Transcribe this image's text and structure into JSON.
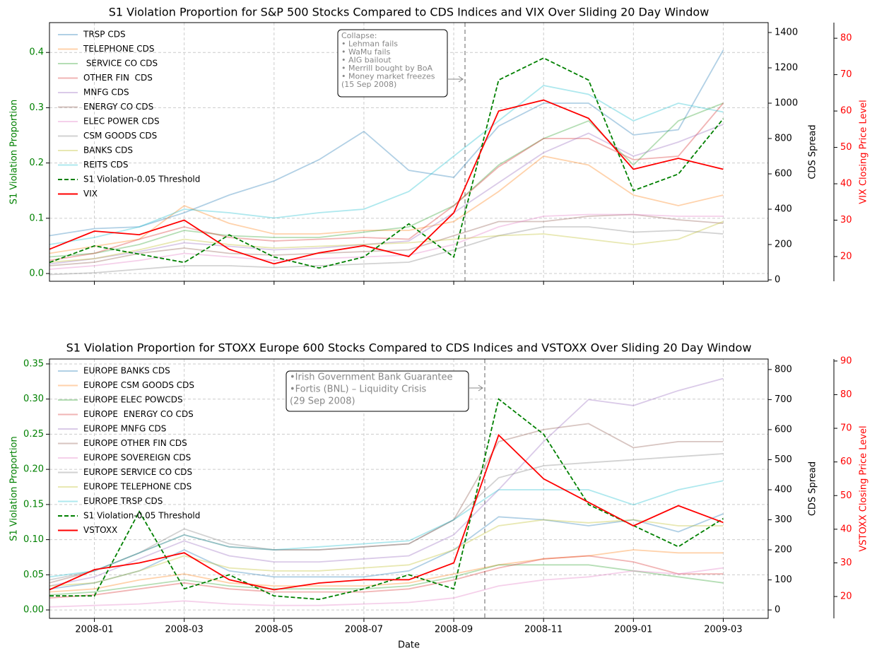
{
  "chart_data": [
    {
      "type": "line",
      "title": "S1 Violation Proportion for S&P 500 Stocks Compared to CDS Indices and VIX Over Sliding 20 Day Window",
      "ylabel": "S1 Violation Proportion",
      "y2label": "CDS Spread",
      "y3label": "VIX Closing Price Level",
      "legend": "upper left",
      "grid": true,
      "annotation": [
        "Collapse:",
        "• Lehman fails",
        "• WaMu fails",
        "• AIG bailout",
        "• Merrill bought by BoA",
        "• Money market freezes",
        "(15 Sep 2008)"
      ],
      "x": [
        "2007-12",
        "2008-01",
        "2008-02",
        "2008-03",
        "2008-04",
        "2008-05",
        "2008-06",
        "2008-07",
        "2008-08",
        "2008-09",
        "2008-10",
        "2008-11",
        "2008-12",
        "2009-01",
        "2009-02",
        "2009-03"
      ],
      "xlim": [
        "2007-12",
        "2009-04"
      ],
      "xticks": [
        "2008-01",
        "2008-03",
        "2008-05",
        "2008-07",
        "2008-09",
        "2008-11",
        "2009-01",
        "2009-03"
      ],
      "ylim": [
        -0.014,
        0.454
      ],
      "yticks": [
        {
          "value": 0,
          "label": "0.0"
        },
        0.1,
        0.2,
        0.3,
        0.4
      ],
      "y2lim": [
        -8,
        1456
      ],
      "y2ticks": [
        0,
        200,
        400,
        600,
        800,
        1000,
        1200,
        1400
      ],
      "y3lim": [
        13.2,
        84.3
      ],
      "y3ticks": [
        20,
        30,
        40,
        50,
        60,
        70,
        80
      ],
      "series": [
        {
          "name": "TRSP CDS",
          "color": "#1f77b4",
          "axis": "y2",
          "values": [
            250,
            290,
            300,
            380,
            480,
            560,
            680,
            840,
            620,
            580,
            870,
            1000,
            1000,
            820,
            850,
            1300
          ]
        },
        {
          "name": "TELEPHONE CDS",
          "color": "#ff7f0e",
          "axis": "y2",
          "values": [
            150,
            190,
            230,
            420,
            320,
            260,
            260,
            280,
            280,
            330,
            500,
            700,
            650,
            480,
            420,
            480
          ]
        },
        {
          "name": " SERVICE CO CDS",
          "color": "#2ca02c",
          "axis": "y2",
          "values": [
            130,
            150,
            200,
            280,
            250,
            240,
            240,
            270,
            300,
            420,
            650,
            800,
            900,
            650,
            900,
            1000
          ]
        },
        {
          "name": "OTHER FIN  CDS",
          "color": "#d62728",
          "axis": "y2",
          "values": [
            110,
            150,
            230,
            300,
            240,
            220,
            230,
            240,
            230,
            420,
            640,
            800,
            800,
            680,
            700,
            1000
          ]
        },
        {
          "name": "MNFG CDS",
          "color": "#9467bd",
          "axis": "y2",
          "values": [
            90,
            120,
            160,
            210,
            190,
            170,
            180,
            200,
            220,
            380,
            550,
            720,
            830,
            700,
            780,
            880
          ]
        },
        {
          "name": "ENERGY CO CDS",
          "color": "#8c564b",
          "axis": "y2",
          "values": [
            80,
            100,
            150,
            180,
            150,
            140,
            150,
            160,
            170,
            250,
            330,
            330,
            360,
            370,
            340,
            320
          ]
        },
        {
          "name": "ELEC POWER CDS",
          "color": "#e377c2",
          "axis": "y2",
          "values": [
            60,
            80,
            110,
            150,
            130,
            110,
            120,
            130,
            140,
            200,
            300,
            360,
            370,
            370,
            360,
            360
          ]
        },
        {
          "name": "CSM GOODS CDS",
          "color": "#7f7f7f",
          "axis": "y2",
          "values": [
            30,
            40,
            60,
            80,
            80,
            70,
            80,
            90,
            100,
            170,
            250,
            300,
            300,
            270,
            280,
            260
          ]
        },
        {
          "name": "BANKS CDS",
          "color": "#bcbd22",
          "axis": "y2",
          "values": [
            100,
            120,
            170,
            230,
            200,
            180,
            190,
            200,
            210,
            230,
            250,
            260,
            230,
            200,
            230,
            330
          ]
        },
        {
          "name": "REITS CDS",
          "color": "#17becf",
          "axis": "y2",
          "values": [
            200,
            240,
            300,
            400,
            380,
            350,
            380,
            400,
            500,
            700,
            900,
            1100,
            1050,
            900,
            1000,
            950
          ]
        },
        {
          "name": "S1 Violation-0.05 Threshold",
          "color": "#008000",
          "axis": "y",
          "dashed": true,
          "values": [
            0.02,
            0.05,
            0.035,
            0.02,
            0.07,
            0.03,
            0.01,
            0.03,
            0.09,
            0.03,
            0.35,
            0.39,
            0.35,
            0.15,
            0.18,
            0.28
          ]
        },
        {
          "name": "VIX",
          "color": "#ff0000",
          "axis": "y3",
          "values": [
            22,
            27,
            26,
            30,
            22,
            18,
            21,
            23,
            20,
            32,
            60,
            63,
            58,
            44,
            47,
            44
          ]
        }
      ]
    },
    {
      "type": "line",
      "title": "S1 Violation Proportion for STOXX Europe 600 Stocks Compared to CDS Indices and VSTOXX Over Sliding 20 Day Window",
      "xlabel": "Date",
      "ylabel": "S1 Violation Proportion",
      "y2label": "CDS Spread",
      "y3label": "VSTOXX Closing Price Level",
      "legend": "upper left",
      "grid": true,
      "annotation": [
        "•Irish Government Bank Guarantee",
        "•Fortis (BNL) – Liquidity Crisis",
        "(29 Sep 2008)"
      ],
      "x": [
        "2007-12",
        "2008-01",
        "2008-02",
        "2008-03",
        "2008-04",
        "2008-05",
        "2008-06",
        "2008-07",
        "2008-08",
        "2008-09",
        "2008-10",
        "2008-11",
        "2008-12",
        "2009-01",
        "2009-02",
        "2009-03"
      ],
      "xlim": [
        "2007-12",
        "2009-04"
      ],
      "xticks": [
        "2008-01",
        "2008-03",
        "2008-05",
        "2008-07",
        "2008-09",
        "2008-11",
        "2009-01",
        "2009-03"
      ],
      "ylim": [
        -0.012,
        0.357
      ],
      "yticks": [
        {
          "value": 0,
          "label": "0.00"
        },
        0.05,
        {
          "value": 0.1,
          "label": "0.10"
        },
        0.15,
        {
          "value": 0.2,
          "label": "0.20"
        },
        0.25,
        {
          "value": 0.3,
          "label": "0.30"
        },
        0.35
      ],
      "y2lim": [
        -28,
        835
      ],
      "y2ticks": [
        0,
        100,
        200,
        300,
        400,
        500,
        600,
        700,
        800
      ],
      "y3lim": [
        13.5,
        90.6
      ],
      "y3ticks": [
        20,
        30,
        40,
        50,
        60,
        70,
        80,
        90
      ],
      "series": [
        {
          "name": "EUROPE BANKS CDS",
          "color": "#1f77b4",
          "axis": "y2",
          "values": [
            70,
            90,
            130,
            200,
            130,
            110,
            110,
            110,
            130,
            200,
            310,
            300,
            280,
            300,
            260,
            320
          ]
        },
        {
          "name": "EUROPE CSM GOODS CDS",
          "color": "#ff7f0e",
          "axis": "y2",
          "values": [
            60,
            70,
            100,
            120,
            90,
            80,
            80,
            80,
            90,
            120,
            150,
            170,
            180,
            200,
            190,
            190
          ]
        },
        {
          "name": "EUROPE ELEC POWCDS",
          "color": "#2ca02c",
          "axis": "y2",
          "values": [
            50,
            60,
            80,
            100,
            80,
            70,
            70,
            70,
            80,
            110,
            150,
            150,
            150,
            130,
            110,
            90
          ]
        },
        {
          "name": "EUROPE  ENERGY CO CDS",
          "color": "#d62728",
          "axis": "y2",
          "values": [
            40,
            50,
            70,
            90,
            70,
            60,
            60,
            60,
            70,
            100,
            140,
            170,
            180,
            160,
            120,
            120
          ]
        },
        {
          "name": "EUROPE MNFG CDS",
          "color": "#9467bd",
          "axis": "y2",
          "values": [
            80,
            110,
            170,
            230,
            180,
            160,
            160,
            170,
            180,
            250,
            400,
            560,
            700,
            680,
            730,
            770
          ]
        },
        {
          "name": "EUROPE OTHER FIN CDS",
          "color": "#8c564b",
          "axis": "y2",
          "values": [
            90,
            130,
            190,
            250,
            210,
            200,
            200,
            210,
            220,
            300,
            560,
            600,
            620,
            540,
            560,
            560
          ]
        },
        {
          "name": "EUROPE SOVEREIGN CDS",
          "color": "#e377c2",
          "axis": "y2",
          "values": [
            10,
            15,
            20,
            30,
            20,
            15,
            15,
            20,
            25,
            40,
            80,
            100,
            110,
            130,
            120,
            140
          ]
        },
        {
          "name": "EUROPE SERVICE CO CDS",
          "color": "#7f7f7f",
          "axis": "y2",
          "values": [
            100,
            130,
            190,
            270,
            220,
            200,
            200,
            210,
            220,
            300,
            440,
            480,
            490,
            500,
            510,
            520
          ]
        },
        {
          "name": "EUROPE TELEPHONE CDS",
          "color": "#bcbd22",
          "axis": "y2",
          "values": [
            80,
            90,
            130,
            180,
            140,
            130,
            130,
            140,
            150,
            200,
            280,
            300,
            290,
            300,
            280,
            280
          ]
        },
        {
          "name": "EUROPE TRSP CDS",
          "color": "#17becf",
          "axis": "y2",
          "values": [
            110,
            130,
            190,
            250,
            210,
            200,
            210,
            220,
            230,
            300,
            400,
            400,
            400,
            350,
            400,
            430
          ]
        },
        {
          "name": "S1 Violation-0.05 Threshold",
          "color": "#008000",
          "axis": "y",
          "dashed": true,
          "values": [
            0.02,
            0.02,
            0.14,
            0.03,
            0.05,
            0.02,
            0.015,
            0.03,
            0.05,
            0.03,
            0.3,
            0.25,
            0.15,
            0.12,
            0.09,
            0.13
          ]
        },
        {
          "name": "VSTOXX",
          "color": "#ff0000",
          "axis": "y3",
          "values": [
            22,
            28,
            30,
            33,
            25,
            22,
            24,
            25,
            25,
            30,
            68,
            55,
            48,
            41,
            47,
            42
          ]
        }
      ]
    }
  ]
}
